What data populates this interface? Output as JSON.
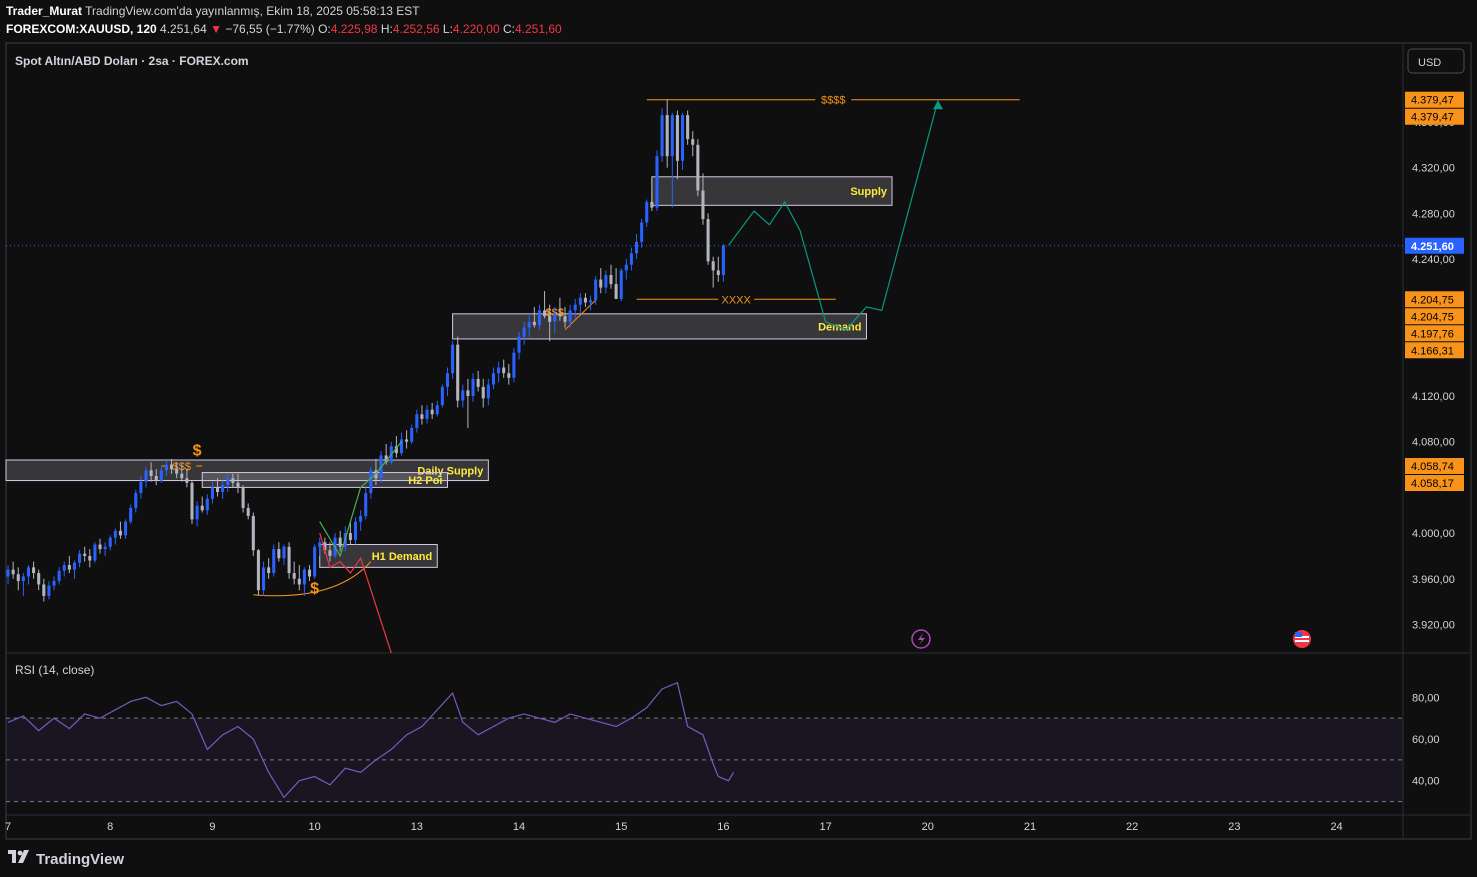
{
  "header": {
    "author": "Trader_Murat",
    "published": "TradingView.com'da yayınlanmış, Ekim 18, 2025 05:58:13 EST",
    "symbol": "FOREXCOM:XAUUSD, 120",
    "last": "4.251,64",
    "change": "−76,55 (−1.77%)",
    "o_label": "O:",
    "o": "4.225,98",
    "h_label": "H:",
    "h": "4.252,56",
    "l_label": "L:",
    "l": "4.220,00",
    "c_label": "C:",
    "c": "4.251,60"
  },
  "legend": "Spot Altın/ABD Doları · 2sa · FOREX.com",
  "currency_button": "USD",
  "rsi_label": "RSI (14, close)",
  "footer": "TradingView",
  "colors": {
    "bg": "#0f0f0f",
    "bull": "#2962ff",
    "bear": "#b2b5be",
    "orange": "#f7931a",
    "zone_text": "#ffeb3b",
    "rsi": "#7e57c2",
    "teal": "#089981",
    "red": "#f23645",
    "green": "#4caf50",
    "price_tag": "#2962ff"
  },
  "chart_data": {
    "type": "candlestick",
    "price_axis": {
      "ticks": [
        4360,
        4320,
        4280,
        4240,
        4120,
        4080,
        4000,
        3960,
        3920
      ],
      "tick_labels": [
        "4.360,00",
        "4.320,00",
        "4.280,00",
        "4.240,00",
        "4.120,00",
        "4.080,00",
        "4.000,00",
        "3.960,00",
        "3.920,00"
      ],
      "ylim": [
        3895,
        4395
      ]
    },
    "price_tags": [
      {
        "label": "4.379,47",
        "value": 4379.47,
        "kind": "orange"
      },
      {
        "label": "4.379,47",
        "value": 4379.47,
        "kind": "orange"
      },
      {
        "label": "4.251,60",
        "value": 4251.6,
        "kind": "blue"
      },
      {
        "label": "4.204,75",
        "value": 4204.75,
        "kind": "orange"
      },
      {
        "label": "4.204,75",
        "value": 4204.75,
        "kind": "orange"
      },
      {
        "label": "4.197,76",
        "value": 4197.76,
        "kind": "orange"
      },
      {
        "label": "4.166,31",
        "value": 4166.31,
        "kind": "orange"
      },
      {
        "label": "4.058,74",
        "value": 4058.74,
        "kind": "orange"
      },
      {
        "label": "4.058,17",
        "value": 4058.17,
        "kind": "orange"
      }
    ],
    "time_axis": {
      "labels": [
        "7",
        "8",
        "9",
        "10",
        "13",
        "14",
        "15",
        "16",
        "17",
        "20",
        "21",
        "22",
        "23",
        "24"
      ],
      "day_index": [
        0,
        1,
        2,
        3,
        4,
        5,
        6,
        7,
        8,
        9,
        10,
        11,
        12,
        13
      ],
      "xlim": [
        -0.02,
        13.65
      ]
    },
    "candles": [
      [
        0.0,
        3962,
        3972,
        3955,
        3968
      ],
      [
        0.05,
        3968,
        3975,
        3960,
        3964
      ],
      [
        0.1,
        3964,
        3970,
        3950,
        3958
      ],
      [
        0.15,
        3958,
        3965,
        3945,
        3962
      ],
      [
        0.2,
        3962,
        3972,
        3955,
        3970
      ],
      [
        0.25,
        3970,
        3975,
        3960,
        3965
      ],
      [
        0.3,
        3965,
        3968,
        3950,
        3955
      ],
      [
        0.35,
        3955,
        3960,
        3940,
        3945
      ],
      [
        0.4,
        3945,
        3958,
        3942,
        3954
      ],
      [
        0.45,
        3954,
        3962,
        3950,
        3958
      ],
      [
        0.5,
        3958,
        3970,
        3955,
        3967
      ],
      [
        0.55,
        3967,
        3975,
        3962,
        3972
      ],
      [
        0.6,
        3972,
        3980,
        3965,
        3968
      ],
      [
        0.65,
        3968,
        3976,
        3960,
        3974
      ],
      [
        0.7,
        3974,
        3985,
        3970,
        3982
      ],
      [
        0.75,
        3982,
        3988,
        3975,
        3980
      ],
      [
        0.8,
        3980,
        3986,
        3970,
        3976
      ],
      [
        0.85,
        3976,
        3992,
        3974,
        3990
      ],
      [
        0.9,
        3990,
        3995,
        3982,
        3986
      ],
      [
        0.95,
        3986,
        3992,
        3980,
        3988
      ],
      [
        1.0,
        3988,
        3998,
        3985,
        3996
      ],
      [
        1.05,
        3996,
        4004,
        3990,
        4002
      ],
      [
        1.1,
        4002,
        4010,
        3995,
        3998
      ],
      [
        1.15,
        3998,
        4012,
        3995,
        4010
      ],
      [
        1.2,
        4010,
        4025,
        4008,
        4022
      ],
      [
        1.25,
        4022,
        4038,
        4018,
        4035
      ],
      [
        1.3,
        4035,
        4050,
        4030,
        4045
      ],
      [
        1.35,
        4045,
        4058,
        4040,
        4055
      ],
      [
        1.4,
        4055,
        4062,
        4045,
        4050
      ],
      [
        1.45,
        4050,
        4056,
        4042,
        4046
      ],
      [
        1.5,
        4046,
        4058,
        4044,
        4055
      ],
      [
        1.55,
        4055,
        4064,
        4050,
        4060
      ],
      [
        1.6,
        4060,
        4065,
        4052,
        4056
      ],
      [
        1.65,
        4056,
        4062,
        4048,
        4052
      ],
      [
        1.7,
        4052,
        4060,
        4045,
        4048
      ],
      [
        1.75,
        4048,
        4056,
        4040,
        4044
      ],
      [
        1.8,
        4044,
        4046,
        4008,
        4012
      ],
      [
        1.85,
        4012,
        4028,
        4006,
        4024
      ],
      [
        1.9,
        4024,
        4032,
        4018,
        4020
      ],
      [
        1.95,
        4020,
        4034,
        4016,
        4030
      ],
      [
        2.0,
        4030,
        4045,
        4026,
        4040
      ],
      [
        2.05,
        4040,
        4048,
        4032,
        4036
      ],
      [
        2.1,
        4036,
        4046,
        4030,
        4042
      ],
      [
        2.15,
        4042,
        4052,
        4036,
        4048
      ],
      [
        2.2,
        4048,
        4052,
        4040,
        4044
      ],
      [
        2.25,
        4044,
        4052,
        4035,
        4040
      ],
      [
        2.3,
        4040,
        4042,
        4018,
        4022
      ],
      [
        2.35,
        4022,
        4026,
        4012,
        4015
      ],
      [
        2.4,
        4015,
        4018,
        3980,
        3985
      ],
      [
        2.45,
        3985,
        3986,
        3945,
        3950
      ],
      [
        2.5,
        3950,
        3975,
        3945,
        3970
      ],
      [
        2.55,
        3970,
        3978,
        3960,
        3965
      ],
      [
        2.6,
        3965,
        3990,
        3962,
        3986
      ],
      [
        2.65,
        3986,
        3992,
        3975,
        3978
      ],
      [
        2.7,
        3978,
        3990,
        3972,
        3988
      ],
      [
        2.75,
        3988,
        3992,
        3960,
        3965
      ],
      [
        2.8,
        3965,
        3975,
        3955,
        3960
      ],
      [
        2.85,
        3960,
        3972,
        3950,
        3955
      ],
      [
        2.9,
        3955,
        3970,
        3945,
        3968
      ],
      [
        2.95,
        3968,
        3972,
        3958,
        3962
      ],
      [
        3.0,
        3962,
        3990,
        3960,
        3988
      ],
      [
        3.05,
        3988,
        3996,
        3980,
        3992
      ],
      [
        3.1,
        3992,
        3996,
        3982,
        3985
      ],
      [
        3.15,
        3985,
        3992,
        3975,
        3980
      ],
      [
        3.2,
        3980,
        4000,
        3978,
        3996
      ],
      [
        3.25,
        3996,
        4002,
        3984,
        3988
      ],
      [
        3.3,
        3988,
        4006,
        3984,
        4000
      ],
      [
        3.35,
        4000,
        4010,
        3990,
        3994
      ],
      [
        3.4,
        3994,
        4014,
        3990,
        4010
      ],
      [
        3.45,
        4010,
        4020,
        4002,
        4015
      ],
      [
        3.5,
        4015,
        4040,
        4012,
        4035
      ],
      [
        3.55,
        4035,
        4058,
        4030,
        4055
      ],
      [
        3.6,
        4055,
        4065,
        4042,
        4048
      ],
      [
        3.65,
        4048,
        4072,
        4044,
        4068
      ],
      [
        3.7,
        4068,
        4078,
        4060,
        4062
      ],
      [
        3.75,
        4062,
        4080,
        4060,
        4076
      ],
      [
        3.8,
        4076,
        4085,
        4066,
        4070
      ],
      [
        3.85,
        4070,
        4088,
        4068,
        4082
      ],
      [
        3.9,
        4082,
        4090,
        4074,
        4080
      ],
      [
        3.95,
        4080,
        4095,
        4078,
        4092
      ],
      [
        4.0,
        4092,
        4108,
        4088,
        4104
      ],
      [
        4.05,
        4104,
        4112,
        4095,
        4100
      ],
      [
        4.1,
        4100,
        4112,
        4096,
        4108
      ],
      [
        4.15,
        4108,
        4114,
        4100,
        4104
      ],
      [
        4.2,
        4104,
        4116,
        4102,
        4112
      ],
      [
        4.25,
        4112,
        4130,
        4110,
        4128
      ],
      [
        4.3,
        4128,
        4145,
        4120,
        4140
      ],
      [
        4.35,
        4140,
        4168,
        4135,
        4165
      ],
      [
        4.4,
        4165,
        4172,
        4110,
        4116
      ],
      [
        4.45,
        4116,
        4130,
        4110,
        4125
      ],
      [
        4.5,
        4125,
        4135,
        4092,
        4120
      ],
      [
        4.55,
        4120,
        4140,
        4115,
        4135
      ],
      [
        4.6,
        4135,
        4142,
        4124,
        4128
      ],
      [
        4.65,
        4128,
        4135,
        4110,
        4118
      ],
      [
        4.7,
        4118,
        4135,
        4112,
        4130
      ],
      [
        4.75,
        4130,
        4145,
        4126,
        4140
      ],
      [
        4.8,
        4140,
        4150,
        4132,
        4145
      ],
      [
        4.85,
        4145,
        4152,
        4136,
        4140
      ],
      [
        4.9,
        4140,
        4148,
        4130,
        4136
      ],
      [
        4.95,
        4136,
        4162,
        4132,
        4158
      ],
      [
        5.0,
        4158,
        4176,
        4152,
        4172
      ],
      [
        5.05,
        4172,
        4185,
        4165,
        4180
      ],
      [
        5.1,
        4180,
        4192,
        4172,
        4185
      ],
      [
        5.15,
        4185,
        4198,
        4180,
        4182
      ],
      [
        5.2,
        4182,
        4200,
        4178,
        4195
      ],
      [
        5.25,
        4195,
        4212,
        4188,
        4190
      ],
      [
        5.3,
        4190,
        4200,
        4168,
        4185
      ],
      [
        5.35,
        4185,
        4198,
        4175,
        4192
      ],
      [
        5.4,
        4192,
        4206,
        4186,
        4190
      ],
      [
        5.45,
        4190,
        4198,
        4180,
        4185
      ],
      [
        5.5,
        4185,
        4200,
        4180,
        4195
      ],
      [
        5.55,
        4195,
        4205,
        4188,
        4200
      ],
      [
        5.6,
        4200,
        4210,
        4192,
        4206
      ],
      [
        5.65,
        4206,
        4210,
        4198,
        4202
      ],
      [
        5.7,
        4202,
        4208,
        4195,
        4204
      ],
      [
        5.75,
        4204,
        4225,
        4200,
        4222
      ],
      [
        5.8,
        4222,
        4232,
        4210,
        4215
      ],
      [
        5.85,
        4215,
        4230,
        4210,
        4226
      ],
      [
        5.9,
        4226,
        4235,
        4214,
        4218
      ],
      [
        5.95,
        4218,
        4232,
        4205,
        4205
      ],
      [
        6.0,
        4205,
        4232,
        4203,
        4230
      ],
      [
        6.05,
        4230,
        4240,
        4222,
        4235
      ],
      [
        6.1,
        4235,
        4250,
        4230,
        4245
      ],
      [
        6.15,
        4245,
        4262,
        4240,
        4255
      ],
      [
        6.2,
        4255,
        4275,
        4250,
        4272
      ],
      [
        6.25,
        4272,
        4292,
        4268,
        4290
      ],
      [
        6.3,
        4290,
        4300,
        4282,
        4285
      ],
      [
        6.35,
        4285,
        4335,
        4282,
        4330
      ],
      [
        6.4,
        4330,
        4372,
        4325,
        4366
      ],
      [
        6.45,
        4366,
        4380,
        4320,
        4330
      ],
      [
        6.5,
        4330,
        4368,
        4285,
        4366
      ],
      [
        6.55,
        4366,
        4370,
        4310,
        4326
      ],
      [
        6.6,
        4326,
        4368,
        4318,
        4366
      ],
      [
        6.65,
        4366,
        4370,
        4340,
        4345
      ],
      [
        6.7,
        4345,
        4352,
        4330,
        4340
      ],
      [
        6.75,
        4340,
        4345,
        4295,
        4300
      ],
      [
        6.8,
        4300,
        4315,
        4270,
        4275
      ],
      [
        6.85,
        4275,
        4280,
        4235,
        4238
      ],
      [
        6.9,
        4238,
        4242,
        4215,
        4230
      ],
      [
        6.95,
        4230,
        4242,
        4220,
        4226
      ],
      [
        7.0,
        4226,
        4253,
        4220,
        4252
      ]
    ],
    "zones": [
      {
        "label": "Supply",
        "top": 4312,
        "bottom": 4287,
        "x0": 6.3,
        "x1": 8.65
      },
      {
        "label": "Demand",
        "top": 4192,
        "bottom": 4170,
        "x0": 4.35,
        "x1": 8.4
      },
      {
        "label": "Daily Supply",
        "top": 4064,
        "bottom": 4046,
        "x0": -0.02,
        "x1": 4.7
      },
      {
        "label": "H2 Poi",
        "top": 4053,
        "bottom": 4040,
        "x0": 1.9,
        "x1": 4.3
      },
      {
        "label": "H1 Demand",
        "top": 3990,
        "bottom": 3970,
        "x0": 3.05,
        "x1": 4.2
      }
    ],
    "annotations": [
      {
        "text": "$$$$",
        "value": 4379.47,
        "x0": 6.25,
        "x1": 9.9
      },
      {
        "text": "XXXX",
        "value": 4204.75,
        "x0": 6.15,
        "x1": 8.1
      },
      {
        "text": "$$$",
        "value": 4058.74,
        "x0": 1.5,
        "x1": 1.9
      },
      {
        "text": "$",
        "value": 4068,
        "x": 1.85
      },
      {
        "text": "$",
        "value": 3947,
        "x": 3.0
      },
      {
        "text": "$$$",
        "value": 4190,
        "x": 5.35
      }
    ],
    "projection_up": [
      [
        7.05,
        4252
      ],
      [
        7.3,
        4282
      ],
      [
        7.45,
        4270
      ],
      [
        7.6,
        4290
      ],
      [
        7.75,
        4265
      ],
      [
        8.0,
        4185
      ],
      [
        8.2,
        4178
      ],
      [
        8.4,
        4198
      ],
      [
        8.55,
        4195
      ],
      [
        9.1,
        4379
      ]
    ],
    "projection_down": [
      [
        3.05,
        4000
      ],
      [
        3.15,
        3970
      ],
      [
        3.25,
        3975
      ],
      [
        3.35,
        3965
      ],
      [
        3.45,
        3978
      ],
      [
        3.75,
        3895
      ]
    ],
    "arrow_up": [
      [
        3.05,
        4010
      ],
      [
        3.25,
        3980
      ],
      [
        3.45,
        4040
      ],
      [
        3.6,
        4052
      ],
      [
        3.85,
        4080
      ]
    ],
    "rsi": {
      "ylim": [
        25,
        95
      ],
      "ticks": [
        80,
        60,
        40
      ],
      "tick_labels": [
        "80,00",
        "60,00",
        "40,00"
      ],
      "overbought": 70,
      "oversold": 30,
      "mid": 50,
      "values": [
        [
          0.0,
          68
        ],
        [
          0.15,
          71
        ],
        [
          0.3,
          64
        ],
        [
          0.45,
          70
        ],
        [
          0.6,
          65
        ],
        [
          0.75,
          72
        ],
        [
          0.9,
          70
        ],
        [
          1.05,
          74
        ],
        [
          1.2,
          78
        ],
        [
          1.35,
          80
        ],
        [
          1.5,
          76
        ],
        [
          1.65,
          78
        ],
        [
          1.8,
          72
        ],
        [
          1.95,
          55
        ],
        [
          2.1,
          62
        ],
        [
          2.25,
          66
        ],
        [
          2.4,
          60
        ],
        [
          2.55,
          44
        ],
        [
          2.7,
          32
        ],
        [
          2.85,
          40
        ],
        [
          3.0,
          42
        ],
        [
          3.15,
          38
        ],
        [
          3.3,
          46
        ],
        [
          3.45,
          44
        ],
        [
          3.6,
          50
        ],
        [
          3.75,
          55
        ],
        [
          3.9,
          62
        ],
        [
          4.05,
          66
        ],
        [
          4.2,
          74
        ],
        [
          4.35,
          82
        ],
        [
          4.45,
          68
        ],
        [
          4.6,
          62
        ],
        [
          4.75,
          66
        ],
        [
          4.9,
          70
        ],
        [
          5.05,
          72
        ],
        [
          5.2,
          70
        ],
        [
          5.35,
          68
        ],
        [
          5.5,
          72
        ],
        [
          5.65,
          70
        ],
        [
          5.8,
          68
        ],
        [
          5.95,
          66
        ],
        [
          6.1,
          70
        ],
        [
          6.25,
          75
        ],
        [
          6.4,
          84
        ],
        [
          6.55,
          87
        ],
        [
          6.65,
          66
        ],
        [
          6.8,
          62
        ],
        [
          6.9,
          48
        ],
        [
          6.95,
          42
        ],
        [
          7.05,
          40
        ],
        [
          7.1,
          44
        ]
      ]
    }
  }
}
